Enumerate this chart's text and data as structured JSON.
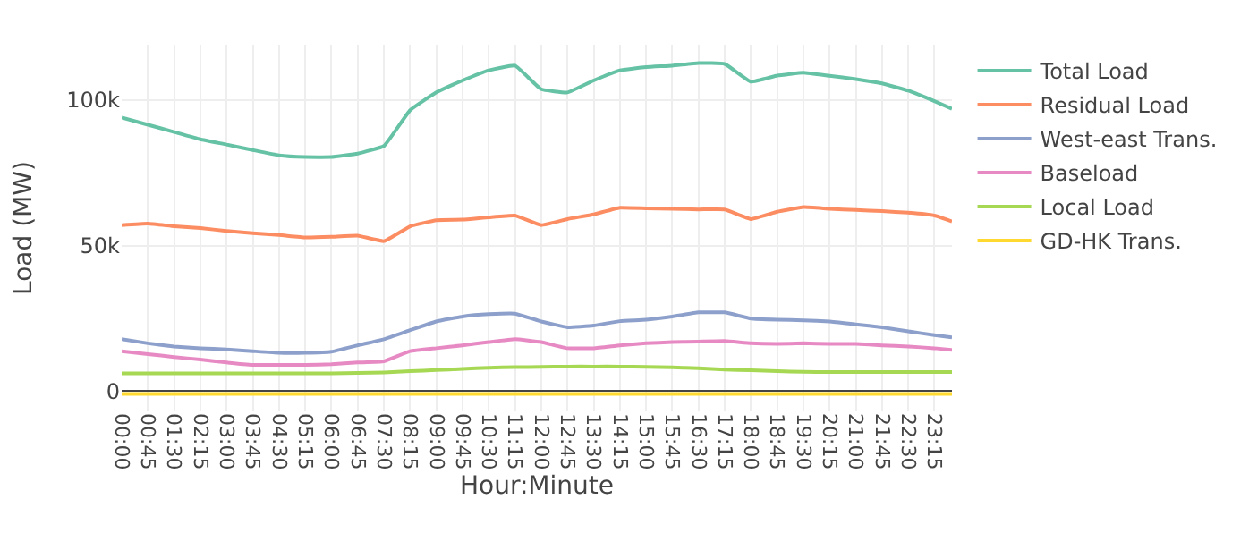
{
  "chart_data": {
    "type": "line",
    "xlabel": "Hour:Minute",
    "ylabel": "Load (MW)",
    "x": [
      0,
      0.75,
      1.5,
      2.25,
      3,
      3.75,
      4.5,
      5.25,
      6,
      6.75,
      7.5,
      8.25,
      9,
      9.75,
      10.5,
      11.25,
      12,
      12.75,
      13.5,
      14.25,
      15,
      15.75,
      16.5,
      17.25,
      18,
      18.75,
      19.5,
      20.25,
      21,
      21.75,
      22.5,
      23.25,
      23.75
    ],
    "xlim": [
      0,
      23.75
    ],
    "xticks": [
      {
        "value": 0,
        "label": "00:00"
      },
      {
        "value": 0.75,
        "label": "00:45"
      },
      {
        "value": 1.5,
        "label": "01:30"
      },
      {
        "value": 2.25,
        "label": "02:15"
      },
      {
        "value": 3,
        "label": "03:00"
      },
      {
        "value": 3.75,
        "label": "03:45"
      },
      {
        "value": 4.5,
        "label": "04:30"
      },
      {
        "value": 5.25,
        "label": "05:15"
      },
      {
        "value": 6,
        "label": "06:00"
      },
      {
        "value": 6.75,
        "label": "06:45"
      },
      {
        "value": 7.5,
        "label": "07:30"
      },
      {
        "value": 8.25,
        "label": "08:15"
      },
      {
        "value": 9,
        "label": "09:00"
      },
      {
        "value": 9.75,
        "label": "09:45"
      },
      {
        "value": 10.5,
        "label": "10:30"
      },
      {
        "value": 11.25,
        "label": "11:15"
      },
      {
        "value": 12,
        "label": "12:00"
      },
      {
        "value": 12.75,
        "label": "12:45"
      },
      {
        "value": 13.5,
        "label": "13:30"
      },
      {
        "value": 14.25,
        "label": "14:15"
      },
      {
        "value": 15,
        "label": "15:00"
      },
      {
        "value": 15.75,
        "label": "15:45"
      },
      {
        "value": 16.5,
        "label": "16:30"
      },
      {
        "value": 17.25,
        "label": "17:15"
      },
      {
        "value": 18,
        "label": "18:00"
      },
      {
        "value": 18.75,
        "label": "18:45"
      },
      {
        "value": 19.5,
        "label": "19:30"
      },
      {
        "value": 20.25,
        "label": "20:15"
      },
      {
        "value": 21,
        "label": "21:00"
      },
      {
        "value": 21.75,
        "label": "21:45"
      },
      {
        "value": 22.5,
        "label": "22:30"
      },
      {
        "value": 23.25,
        "label": "23:15"
      }
    ],
    "ylim": [
      -7000,
      119000
    ],
    "yticks": [
      0,
      {
        "value": 50000,
        "label": "50k"
      },
      {
        "value": 100000,
        "label": "100k"
      }
    ],
    "grid": true,
    "legend": "top right",
    "marker": "none",
    "line_style": "solid",
    "series": [
      {
        "name": "Total Load",
        "color": "#66c2a5",
        "values": [
          94000,
          91500,
          89000,
          86500,
          84700,
          82800,
          81000,
          80400,
          80400,
          81600,
          84200,
          96500,
          102600,
          106700,
          110200,
          111800,
          103700,
          102600,
          106700,
          110200,
          111300,
          111800,
          112700,
          112400,
          106300,
          108400,
          109400,
          108300,
          107200,
          105700,
          103200,
          99600,
          97000
        ]
      },
      {
        "name": "Residual Load",
        "color": "#fc8d62",
        "values": [
          57000,
          57500,
          56600,
          56000,
          55000,
          54200,
          53600,
          52800,
          53000,
          53400,
          51500,
          56600,
          58700,
          58900,
          59700,
          60300,
          57000,
          59100,
          60700,
          63000,
          62800,
          62600,
          62400,
          62400,
          59100,
          61600,
          63200,
          62600,
          62200,
          61800,
          61300,
          60300,
          58300
        ]
      },
      {
        "name": "West-east Trans.",
        "color": "#8da0cb",
        "values": [
          17800,
          16400,
          15300,
          14700,
          14300,
          13700,
          13100,
          13100,
          13500,
          15700,
          17800,
          20900,
          23900,
          25600,
          26400,
          26600,
          23900,
          21900,
          22500,
          24000,
          24500,
          25600,
          27000,
          27000,
          24900,
          24500,
          24300,
          23900,
          22900,
          21900,
          20500,
          19200,
          18400
        ]
      },
      {
        "name": "Baseload",
        "color": "#e78ac3",
        "values": [
          13700,
          12700,
          11700,
          10800,
          9800,
          9000,
          9000,
          9000,
          9200,
          9800,
          10200,
          13700,
          14700,
          15700,
          16800,
          17800,
          16800,
          14700,
          14700,
          15700,
          16400,
          16800,
          17000,
          17200,
          16400,
          16200,
          16400,
          16200,
          16200,
          15700,
          15300,
          14700,
          14100
        ]
      },
      {
        "name": "Local Load",
        "color": "#a6d854",
        "values": [
          6100,
          6100,
          6100,
          6100,
          6100,
          6100,
          6100,
          6100,
          6100,
          6200,
          6400,
          6800,
          7200,
          7600,
          8000,
          8200,
          8300,
          8400,
          8400,
          8400,
          8300,
          8100,
          7800,
          7400,
          7100,
          6800,
          6600,
          6500,
          6500,
          6500,
          6500,
          6500,
          6500
        ]
      },
      {
        "name": "GD-HK Trans.",
        "color": "#ffd92f",
        "values": [
          -1000,
          -1000,
          -1000,
          -1000,
          -1000,
          -1000,
          -1000,
          -1000,
          -1000,
          -1000,
          -1000,
          -1000,
          -1000,
          -1000,
          -1000,
          -1000,
          -1000,
          -1000,
          -1000,
          -1000,
          -1000,
          -1000,
          -1000,
          -1000,
          -1000,
          -1000,
          -1000,
          -1000,
          -1000,
          -1000,
          -1000,
          -1000,
          -1000
        ]
      }
    ]
  }
}
